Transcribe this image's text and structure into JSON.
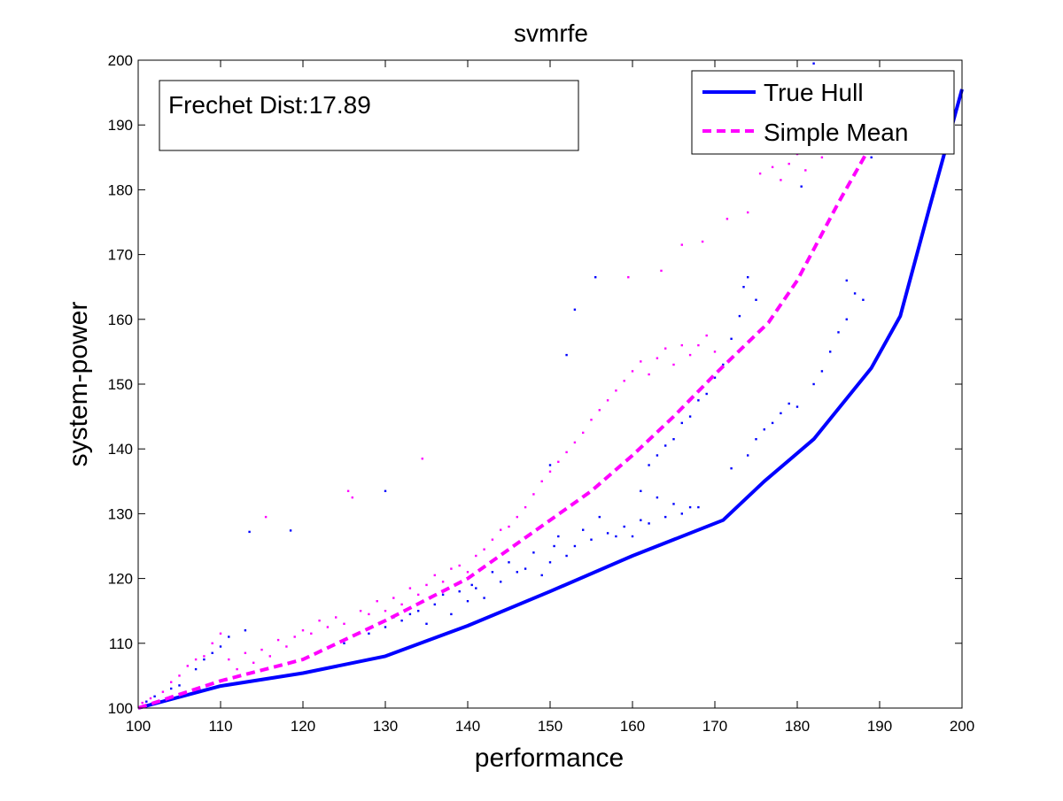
{
  "chart_data": {
    "type": "scatter",
    "title": "svmrfe",
    "xlabel": "performance",
    "ylabel": "system-power",
    "xlim": [
      100,
      200
    ],
    "ylim": [
      100,
      200
    ],
    "xticks": [
      100,
      110,
      120,
      130,
      140,
      150,
      160,
      170,
      180,
      190,
      200
    ],
    "yticks": [
      100,
      110,
      120,
      130,
      140,
      150,
      160,
      170,
      180,
      190,
      200
    ],
    "grid": false,
    "legend_position": "top-right",
    "annotation": "Frechet Dist:17.89",
    "lines": [
      {
        "name": "True Hull",
        "color": "#0000ff",
        "style": "solid",
        "x": [
          100,
          110,
          120,
          130,
          140,
          150,
          160,
          171,
          176,
          182,
          189,
          192.5,
          196,
          200
        ],
        "y": [
          100,
          103.4,
          105.4,
          108,
          112.7,
          118,
          123.5,
          129,
          135,
          141.5,
          152.5,
          160.5,
          177,
          195.5
        ]
      },
      {
        "name": "Simple Mean",
        "color": "#ff00ff",
        "style": "dashed",
        "x": [
          100,
          110,
          120,
          130,
          140,
          150,
          155,
          160,
          165,
          170,
          176.5,
          180,
          185,
          189,
          195
        ],
        "y": [
          100,
          104.2,
          107.5,
          113.5,
          120,
          129,
          133.5,
          139,
          145,
          151.5,
          159.5,
          166,
          178,
          187,
          195
        ]
      }
    ],
    "scatter_series": [
      {
        "color": "#0000ff",
        "points": [
          [
            101,
            101
          ],
          [
            102,
            101.8
          ],
          [
            104,
            103
          ],
          [
            105,
            103.5
          ],
          [
            107,
            106
          ],
          [
            108,
            107.5
          ],
          [
            109,
            108.5
          ],
          [
            110,
            109.5
          ],
          [
            111,
            111
          ],
          [
            113,
            112
          ],
          [
            113.5,
            127.2
          ],
          [
            118.5,
            127.4
          ],
          [
            125,
            110
          ],
          [
            128,
            111.5
          ],
          [
            130,
            112.5
          ],
          [
            131,
            114
          ],
          [
            132,
            113.5
          ],
          [
            133,
            114.5
          ],
          [
            134,
            115
          ],
          [
            135,
            113
          ],
          [
            136,
            116
          ],
          [
            137,
            117.5
          ],
          [
            138,
            114.5
          ],
          [
            139,
            118
          ],
          [
            140,
            116.5
          ],
          [
            140.5,
            119
          ],
          [
            141,
            118.5
          ],
          [
            142,
            117
          ],
          [
            143,
            121
          ],
          [
            144,
            119.5
          ],
          [
            145,
            122.5
          ],
          [
            146,
            121
          ],
          [
            147,
            121.5
          ],
          [
            148,
            124
          ],
          [
            149,
            120.5
          ],
          [
            150,
            122.5
          ],
          [
            150.5,
            125
          ],
          [
            151,
            126.5
          ],
          [
            152,
            123.5
          ],
          [
            153,
            125
          ],
          [
            154,
            127.5
          ],
          [
            155,
            126
          ],
          [
            156,
            129.5
          ],
          [
            157,
            127
          ],
          [
            158,
            126.5
          ],
          [
            159,
            128
          ],
          [
            160,
            126.5
          ],
          [
            161,
            129
          ],
          [
            162,
            128.5
          ],
          [
            163,
            132.5
          ],
          [
            164,
            129.5
          ],
          [
            165,
            131.5
          ],
          [
            166,
            130
          ],
          [
            167,
            131
          ],
          [
            168,
            131
          ],
          [
            161,
            133.5
          ],
          [
            162,
            137.5
          ],
          [
            163,
            139
          ],
          [
            164,
            140.5
          ],
          [
            165,
            141.5
          ],
          [
            166,
            144
          ],
          [
            167,
            145
          ],
          [
            168,
            147.5
          ],
          [
            169,
            148.5
          ],
          [
            170,
            151
          ],
          [
            171,
            153
          ],
          [
            172,
            157
          ],
          [
            173,
            160.5
          ],
          [
            173.5,
            165
          ],
          [
            174,
            166.5
          ],
          [
            175,
            163
          ],
          [
            172,
            137
          ],
          [
            174,
            139
          ],
          [
            175,
            141.5
          ],
          [
            176,
            143
          ],
          [
            177,
            144
          ],
          [
            178,
            145.5
          ],
          [
            179,
            147
          ],
          [
            180,
            146.5
          ],
          [
            182,
            150
          ],
          [
            183,
            152
          ],
          [
            184,
            155
          ],
          [
            185,
            158
          ],
          [
            186,
            160
          ],
          [
            187,
            164
          ],
          [
            188,
            163
          ],
          [
            186,
            166
          ],
          [
            155.5,
            166.5
          ],
          [
            153,
            161.5
          ],
          [
            152,
            154.5
          ],
          [
            150,
            137.5
          ],
          [
            130,
            133.5
          ],
          [
            180.5,
            180.5
          ],
          [
            182,
            199.5
          ],
          [
            183,
            196
          ],
          [
            184,
            190
          ],
          [
            185,
            188.5
          ],
          [
            186,
            195
          ],
          [
            188,
            186
          ],
          [
            189,
            185
          ]
        ]
      },
      {
        "color": "#ff00ff",
        "points": [
          [
            100.5,
            100.8
          ],
          [
            101.5,
            101.5
          ],
          [
            103,
            102.5
          ],
          [
            104,
            104
          ],
          [
            105,
            105
          ],
          [
            106,
            106.5
          ],
          [
            107,
            107.5
          ],
          [
            108,
            108
          ],
          [
            109,
            110
          ],
          [
            110,
            111.5
          ],
          [
            111,
            107.5
          ],
          [
            112,
            106
          ],
          [
            113,
            108.5
          ],
          [
            114,
            107
          ],
          [
            115,
            109
          ],
          [
            115.5,
            129.5
          ],
          [
            116,
            108
          ],
          [
            117,
            110.5
          ],
          [
            118,
            109.5
          ],
          [
            119,
            111
          ],
          [
            120,
            112
          ],
          [
            121,
            111.5
          ],
          [
            122,
            113.5
          ],
          [
            123,
            112.5
          ],
          [
            124,
            114
          ],
          [
            125,
            113
          ],
          [
            125.5,
            133.5
          ],
          [
            126,
            132.5
          ],
          [
            127,
            115
          ],
          [
            128,
            114.5
          ],
          [
            129,
            116.5
          ],
          [
            130,
            115
          ],
          [
            131,
            117
          ],
          [
            132,
            116
          ],
          [
            133,
            118.5
          ],
          [
            134,
            117.5
          ],
          [
            134.5,
            138.5
          ],
          [
            135,
            119
          ],
          [
            136,
            120.5
          ],
          [
            137,
            119.5
          ],
          [
            138,
            121.5
          ],
          [
            139,
            122
          ],
          [
            140,
            121
          ],
          [
            141,
            123.5
          ],
          [
            142,
            124.5
          ],
          [
            143,
            126
          ],
          [
            144,
            127.5
          ],
          [
            145,
            128
          ],
          [
            146,
            129.5
          ],
          [
            147,
            131
          ],
          [
            148,
            133
          ],
          [
            149,
            135
          ],
          [
            150,
            136.5
          ],
          [
            151,
            138
          ],
          [
            152,
            139.5
          ],
          [
            153,
            141
          ],
          [
            154,
            142.5
          ],
          [
            155,
            144.5
          ],
          [
            156,
            146
          ],
          [
            157,
            147.5
          ],
          [
            158,
            149
          ],
          [
            159,
            150.5
          ],
          [
            160,
            152
          ],
          [
            161,
            153.5
          ],
          [
            162,
            151.5
          ],
          [
            163,
            154
          ],
          [
            164,
            155.5
          ],
          [
            165,
            153
          ],
          [
            166,
            156
          ],
          [
            167,
            154.5
          ],
          [
            168,
            156
          ],
          [
            169,
            157.5
          ],
          [
            170,
            155
          ],
          [
            159.5,
            166.5
          ],
          [
            163.5,
            167.5
          ],
          [
            166,
            171.5
          ],
          [
            168.5,
            172
          ],
          [
            171.5,
            175.5
          ],
          [
            174,
            176.5
          ],
          [
            175.5,
            182.5
          ],
          [
            177,
            183.5
          ],
          [
            178,
            181.5
          ],
          [
            179,
            184
          ],
          [
            180,
            185.5
          ],
          [
            181,
            183
          ],
          [
            182,
            187.5
          ],
          [
            183,
            185
          ],
          [
            184,
            189
          ],
          [
            185,
            186.5
          ]
        ]
      }
    ]
  }
}
